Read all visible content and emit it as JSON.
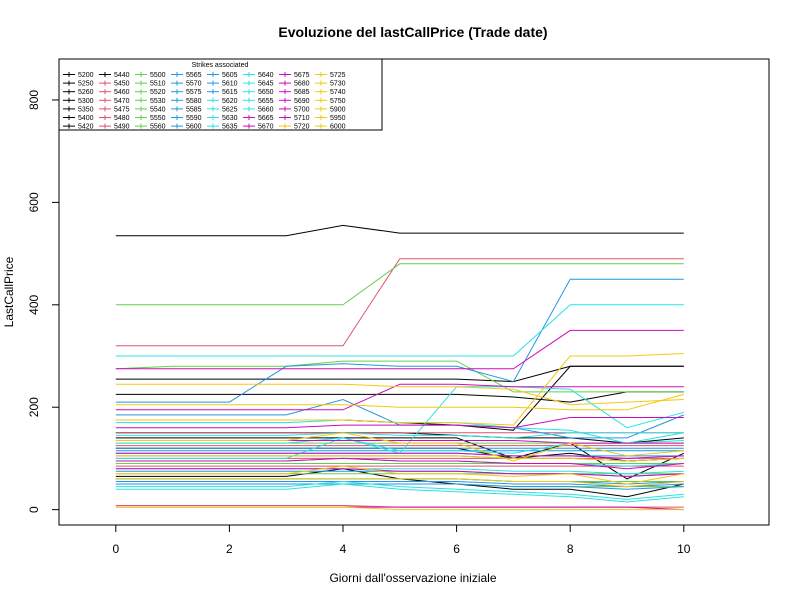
{
  "chart_data": {
    "type": "line",
    "title": "Evoluzione del lastCallPrice (Trade date)",
    "xlabel": "Giorni dall'osservazione iniziale",
    "ylabel": "LastCallPrice",
    "xlim": [
      -1,
      11.5
    ],
    "ylim": [
      -30,
      880
    ],
    "xticks": [
      0,
      2,
      4,
      6,
      8,
      10
    ],
    "yticks": [
      0,
      200,
      400,
      600,
      800
    ],
    "grid": false,
    "legend": {
      "title": "Strikes associated",
      "placement": "top-left"
    },
    "x": [
      0,
      1,
      2,
      3,
      4,
      5,
      6,
      7,
      8,
      9,
      10
    ],
    "series": [
      {
        "name": "5200",
        "color": "#000000",
        "values": [
          535,
          535,
          535,
          535,
          555,
          540,
          540,
          540,
          540,
          540,
          540
        ]
      },
      {
        "name": "5250",
        "color": "#000000",
        "values": [
          255,
          255,
          255,
          255,
          255,
          255,
          255,
          250,
          280,
          280,
          280
        ]
      },
      {
        "name": "5260",
        "color": "#000000",
        "values": [
          225,
          225,
          225,
          225,
          225,
          225,
          225,
          220,
          210,
          230,
          230
        ]
      },
      {
        "name": "5300",
        "color": "#000000",
        "values": [
          175,
          175,
          175,
          175,
          175,
          170,
          165,
          155,
          280,
          280,
          280
        ]
      },
      {
        "name": "5350",
        "color": "#000000",
        "values": [
          150,
          150,
          150,
          150,
          150,
          150,
          145,
          140,
          140,
          130,
          140
        ]
      },
      {
        "name": "5400",
        "color": "#000000",
        "values": [
          140,
          140,
          140,
          140,
          140,
          140,
          140,
          100,
          130,
          60,
          110
        ]
      },
      {
        "name": "5420",
        "color": "#000000",
        "values": [
          120,
          120,
          120,
          120,
          120,
          120,
          120,
          100,
          110,
          95,
          100
        ]
      },
      {
        "name": "5440",
        "color": "#000000",
        "values": [
          65,
          65,
          65,
          65,
          80,
          60,
          50,
          40,
          40,
          25,
          50
        ]
      },
      {
        "name": "5450",
        "color": "#DF536B",
        "values": [
          320,
          320,
          320,
          320,
          320,
          490,
          490,
          490,
          490,
          490,
          490
        ]
      },
      {
        "name": "5460",
        "color": "#DF536B",
        "values": [
          150,
          150,
          150,
          150,
          150,
          150,
          150,
          150,
          150,
          150,
          150
        ]
      },
      {
        "name": "5470",
        "color": "#DF536B",
        "values": [
          125,
          125,
          125,
          125,
          125,
          125,
          125,
          125,
          125,
          125,
          125
        ]
      },
      {
        "name": "5475",
        "color": "#DF536B",
        "values": [
          100,
          100,
          100,
          100,
          100,
          100,
          100,
          100,
          100,
          100,
          100
        ]
      },
      {
        "name": "5480",
        "color": "#DF536B",
        "values": [
          85,
          85,
          85,
          85,
          85,
          85,
          85,
          85,
          85,
          85,
          85
        ]
      },
      {
        "name": "5490",
        "color": "#DF536B",
        "values": [
          8,
          8,
          8,
          8,
          8,
          5,
          5,
          5,
          5,
          5,
          5
        ]
      },
      {
        "name": "5500",
        "color": "#61D04F",
        "values": [
          400,
          400,
          400,
          400,
          400,
          480,
          480,
          480,
          480,
          480,
          480
        ]
      },
      {
        "name": "5510",
        "color": "#61D04F",
        "values": [
          275,
          280,
          280,
          280,
          290,
          290,
          290,
          230,
          230,
          230,
          230
        ]
      },
      {
        "name": "5520",
        "color": "#61D04F",
        "values": [
          130,
          130,
          130,
          130,
          130,
          130,
          130,
          130,
          130,
          130,
          130
        ]
      },
      {
        "name": "5530",
        "color": "#61D04F",
        "values": [
          90,
          90,
          90,
          90,
          90,
          90,
          90,
          90,
          90,
          90,
          90
        ]
      },
      {
        "name": "5540",
        "color": "#61D04F",
        "values": [
          70,
          70,
          70,
          70,
          70,
          70,
          70,
          70,
          70,
          70,
          70
        ]
      },
      {
        "name": "5550",
        "color": "#61D04F",
        "values": [
          60,
          60,
          60,
          60,
          60,
          60,
          60,
          55,
          55,
          55,
          55
        ]
      },
      {
        "name": "5560",
        "color": "#61D04F",
        "values": [
          50,
          50,
          50,
          50,
          50,
          50,
          50,
          45,
          45,
          45,
          45
        ]
      },
      {
        "name": "5565",
        "color": "#2297E6",
        "values": [
          210,
          210,
          210,
          280,
          285,
          280,
          280,
          250,
          450,
          450,
          450
        ]
      },
      {
        "name": "5570",
        "color": "#2297E6",
        "values": [
          185,
          185,
          185,
          185,
          215,
          165,
          165,
          160,
          140,
          140,
          185
        ]
      },
      {
        "name": "5575",
        "color": "#2297E6",
        "values": [
          120,
          120,
          120,
          120,
          120,
          120,
          120,
          120,
          120,
          120,
          120
        ]
      },
      {
        "name": "5580",
        "color": "#2297E6",
        "values": [
          115,
          115,
          115,
          115,
          115,
          115,
          115,
          115,
          115,
          115,
          115
        ]
      },
      {
        "name": "5585",
        "color": "#2297E6",
        "values": [
          110,
          110,
          110,
          110,
          110,
          110,
          110,
          105,
          105,
          105,
          105
        ]
      },
      {
        "name": "5590",
        "color": "#2297E6",
        "values": [
          105,
          105,
          105,
          105,
          105,
          105,
          105,
          100,
          100,
          95,
          100
        ]
      },
      {
        "name": "5600",
        "color": "#2297E6",
        "values": [
          75,
          75,
          75,
          75,
          75,
          75,
          75,
          70,
          70,
          65,
          70
        ]
      },
      {
        "name": "5605",
        "color": "#2297E6",
        "values": [
          60,
          60,
          60,
          60,
          60,
          60,
          60,
          55,
          55,
          50,
          55
        ]
      },
      {
        "name": "5610",
        "color": "#2297E6",
        "values": [
          55,
          55,
          55,
          55,
          55,
          55,
          55,
          50,
          50,
          45,
          50
        ]
      },
      {
        "name": "5615",
        "color": "#2297E6",
        "values": [
          50,
          50,
          50,
          50,
          50,
          50,
          50,
          45,
          45,
          40,
          45
        ]
      },
      {
        "name": "5620",
        "color": "#28E2E5",
        "values": [
          300,
          300,
          300,
          300,
          300,
          300,
          300,
          300,
          400,
          400,
          400
        ]
      },
      {
        "name": "5625",
        "color": "#28E2E5",
        "values": [
          170,
          170,
          170,
          170,
          175,
          170,
          170,
          160,
          155,
          130,
          150
        ]
      },
      {
        "name": "5630",
        "color": "#28E2E5",
        "values": [
          145,
          145,
          145,
          145,
          150,
          145,
          145,
          140,
          150,
          150,
          150
        ]
      },
      {
        "name": "5635",
        "color": "#28E2E5",
        "values": [
          130,
          130,
          130,
          130,
          140,
          115,
          115,
          110,
          130,
          130,
          135
        ]
      },
      {
        "name": "5640",
        "color": "#28E2E5",
        "values": [
          100,
          100,
          100,
          100,
          140,
          110,
          240,
          240,
          235,
          160,
          190
        ]
      },
      {
        "name": "5645",
        "color": "#28E2E5",
        "values": [
          95,
          95,
          95,
          95,
          100,
          95,
          95,
          90,
          90,
          85,
          90
        ]
      },
      {
        "name": "5650",
        "color": "#28E2E5",
        "values": [
          80,
          80,
          80,
          80,
          80,
          80,
          80,
          75,
          75,
          70,
          75
        ]
      },
      {
        "name": "5655",
        "color": "#28E2E5",
        "values": [
          45,
          45,
          45,
          45,
          55,
          45,
          40,
          35,
          30,
          20,
          30
        ]
      },
      {
        "name": "5660",
        "color": "#28E2E5",
        "values": [
          40,
          40,
          40,
          40,
          50,
          40,
          35,
          30,
          25,
          15,
          25
        ]
      },
      {
        "name": "5665",
        "color": "#CD0BBC",
        "values": [
          275,
          275,
          275,
          275,
          275,
          275,
          275,
          275,
          350,
          350,
          350
        ]
      },
      {
        "name": "5670",
        "color": "#CD0BBC",
        "values": [
          195,
          195,
          195,
          195,
          195,
          245,
          245,
          240,
          240,
          240,
          240
        ]
      },
      {
        "name": "5675",
        "color": "#CD0BBC",
        "values": [
          160,
          160,
          160,
          160,
          165,
          165,
          165,
          160,
          180,
          180,
          180
        ]
      },
      {
        "name": "5680",
        "color": "#CD0BBC",
        "values": [
          135,
          135,
          135,
          135,
          135,
          135,
          135,
          135,
          130,
          130,
          130
        ]
      },
      {
        "name": "5685",
        "color": "#CD0BBC",
        "values": [
          110,
          110,
          110,
          110,
          110,
          110,
          110,
          105,
          105,
          100,
          105
        ]
      },
      {
        "name": "5690",
        "color": "#CD0BBC",
        "values": [
          95,
          95,
          95,
          95,
          100,
          95,
          95,
          90,
          90,
          80,
          90
        ]
      },
      {
        "name": "5700",
        "color": "#CD0BBC",
        "values": [
          80,
          80,
          80,
          80,
          80,
          75,
          75,
          70,
          70,
          65,
          70
        ]
      },
      {
        "name": "5710",
        "color": "#CD0BBC",
        "values": [
          5,
          5,
          5,
          5,
          5,
          5,
          5,
          5,
          5,
          5,
          0
        ]
      },
      {
        "name": "5720",
        "color": "#F5C710",
        "values": [
          245,
          245,
          245,
          245,
          245,
          240,
          240,
          235,
          205,
          210,
          215
        ]
      },
      {
        "name": "5725",
        "color": "#F5C710",
        "values": [
          205,
          205,
          205,
          205,
          205,
          200,
          200,
          200,
          195,
          195,
          225
        ]
      },
      {
        "name": "5730",
        "color": "#F5C710",
        "values": [
          175,
          175,
          175,
          175,
          175,
          170,
          170,
          165,
          300,
          300,
          305
        ]
      },
      {
        "name": "5740",
        "color": "#F5C710",
        "values": [
          135,
          135,
          135,
          135,
          150,
          130,
          130,
          95,
          130,
          105,
          115
        ]
      },
      {
        "name": "5750",
        "color": "#F5C710",
        "values": [
          105,
          105,
          105,
          105,
          105,
          105,
          105,
          100,
          100,
          95,
          100
        ]
      },
      {
        "name": "5900",
        "color": "#F5C710",
        "values": [
          70,
          70,
          70,
          70,
          85,
          70,
          70,
          65,
          70,
          50,
          70
        ]
      },
      {
        "name": "5950",
        "color": "#F5C710",
        "values": [
          60,
          60,
          60,
          60,
          60,
          60,
          60,
          55,
          55,
          45,
          55
        ]
      },
      {
        "name": "6000",
        "color": "#F5C710",
        "values": [
          5,
          5,
          5,
          5,
          5,
          0,
          0,
          0,
          0,
          0,
          0
        ]
      }
    ]
  }
}
